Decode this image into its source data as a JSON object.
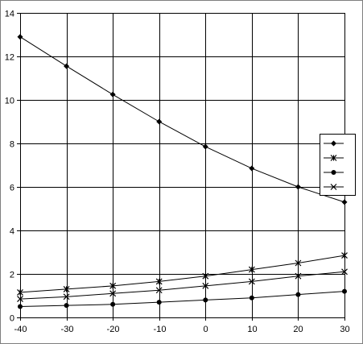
{
  "chart_data": {
    "type": "line",
    "title": "",
    "xlabel": "",
    "ylabel": "",
    "x": [
      -40,
      -30,
      -20,
      -10,
      0,
      10,
      20,
      30
    ],
    "xlim": [
      -40,
      30
    ],
    "ylim": [
      0,
      14
    ],
    "x_ticks": [
      -40,
      -30,
      -20,
      -10,
      0,
      10,
      20,
      30
    ],
    "y_ticks": [
      0,
      2,
      4,
      6,
      8,
      10,
      12,
      14
    ],
    "grid": true,
    "legend_position": "right",
    "series": [
      {
        "marker": "diamond",
        "color": "#000000",
        "values": [
          12.9,
          11.55,
          10.25,
          9.0,
          7.85,
          6.85,
          6.0,
          5.3
        ]
      },
      {
        "marker": "star",
        "color": "#000000",
        "values": [
          1.15,
          1.3,
          1.45,
          1.65,
          1.9,
          2.2,
          2.5,
          2.85
        ]
      },
      {
        "marker": "circle",
        "color": "#000000",
        "values": [
          0.5,
          0.55,
          0.6,
          0.7,
          0.8,
          0.9,
          1.05,
          1.2
        ]
      },
      {
        "marker": "x",
        "color": "#000000",
        "values": [
          0.85,
          0.95,
          1.1,
          1.25,
          1.45,
          1.65,
          1.9,
          2.1
        ]
      }
    ]
  }
}
